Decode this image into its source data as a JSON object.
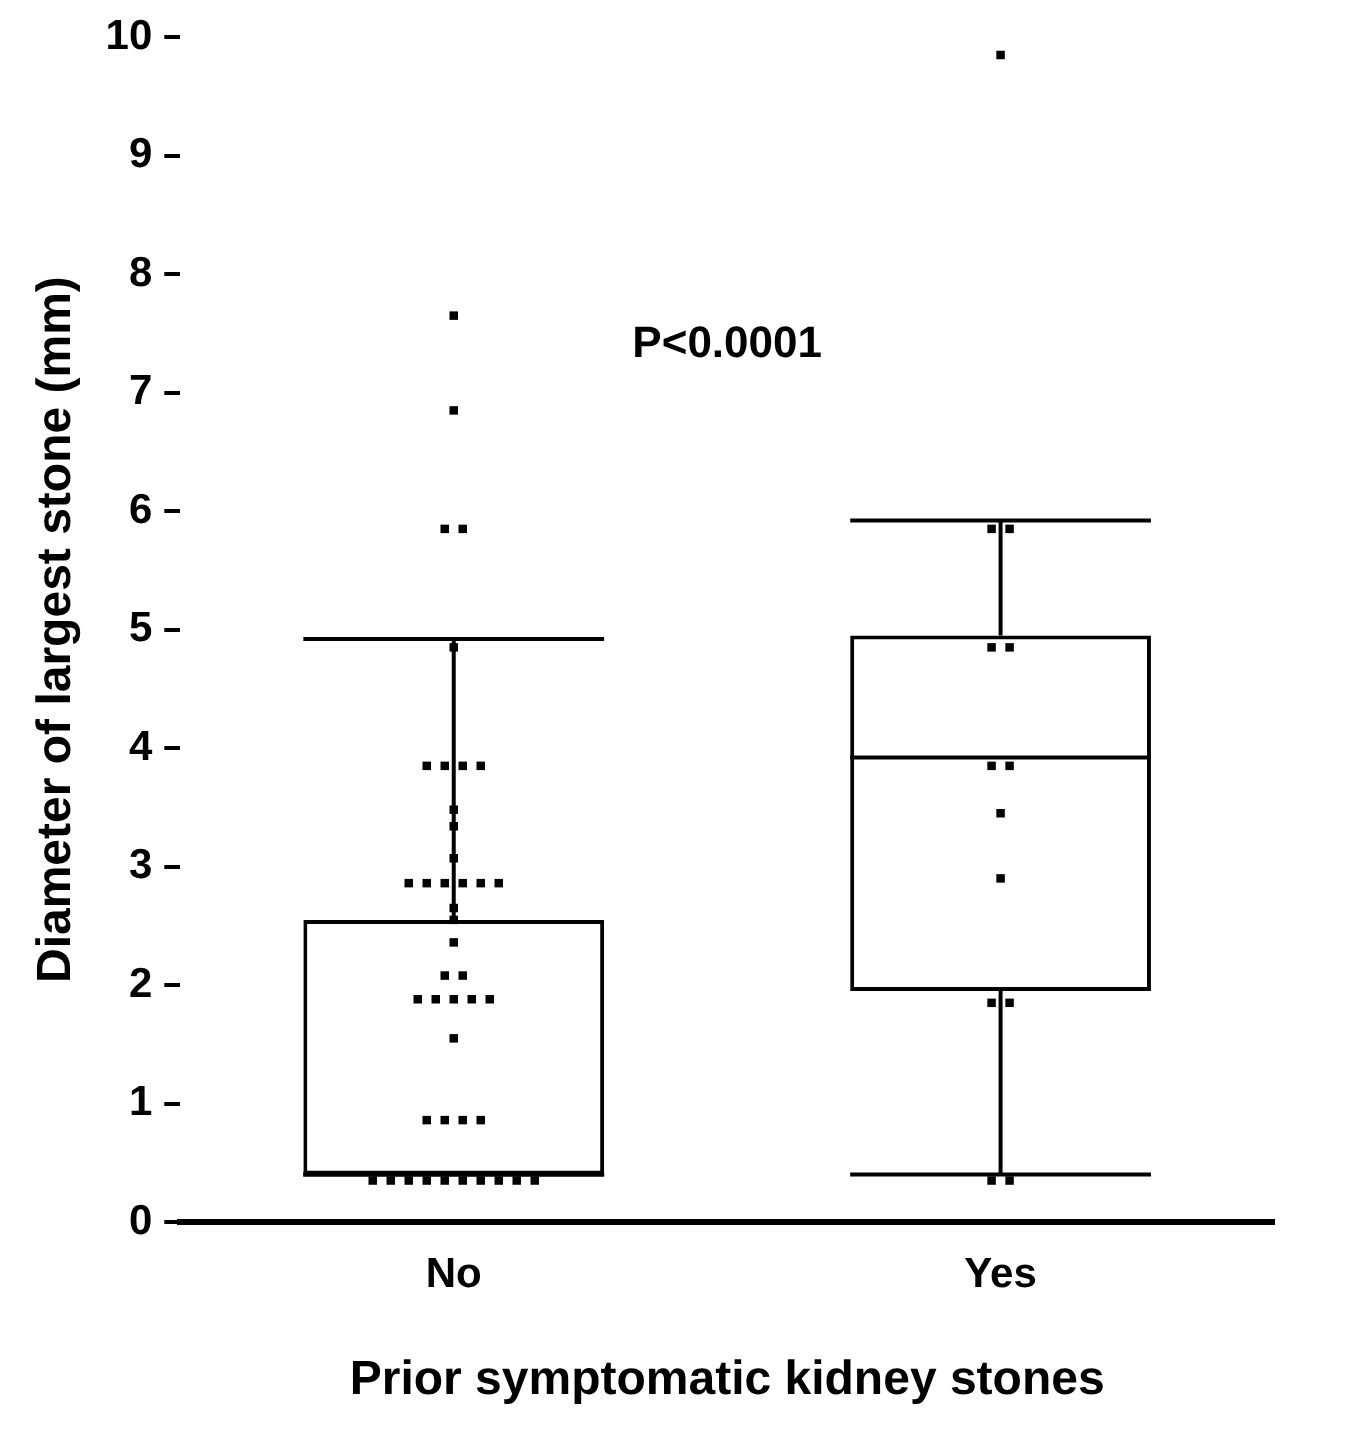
{
  "chart_data": {
    "type": "box",
    "categories": [
      "No",
      "Yes"
    ],
    "xlabel": "Prior symptomatic kidney stones",
    "ylabel": "Diameter of largest stone (mm)",
    "ylim": [
      0,
      10
    ],
    "yticks": [
      0,
      1,
      2,
      3,
      4,
      5,
      6,
      7,
      8,
      9,
      10
    ],
    "grid": false,
    "legend": false,
    "boxes": [
      {
        "low": 0.4,
        "q1": 0.4,
        "median": 0.4,
        "q3": 2.55,
        "high": 4.92
      },
      {
        "low": 0.4,
        "q1": 1.95,
        "median": 3.92,
        "q3": 4.95,
        "high": 5.92
      }
    ],
    "series": [
      {
        "type": "scatter",
        "color": "#000000",
        "marker": "square",
        "x": [
          "No",
          "No",
          "No",
          "No",
          "No",
          "No",
          "No",
          "No",
          "No",
          "No",
          "No",
          "No",
          "No",
          "No",
          "No",
          "No",
          "No",
          "No",
          "No",
          "No",
          "No",
          "No",
          "No",
          "No",
          "No",
          "No",
          "No",
          "No",
          "No",
          "No",
          "No",
          "No",
          "No",
          "No",
          "No",
          "No",
          "No",
          "No",
          "No",
          "No",
          "No",
          "No",
          "No",
          "Yes",
          "Yes",
          "Yes",
          "Yes",
          "Yes",
          "Yes",
          "Yes",
          "Yes",
          "Yes",
          "Yes",
          "Yes",
          "Yes",
          "Yes"
        ],
        "values": [
          7.65,
          6.85,
          5.85,
          5.85,
          4.85,
          3.85,
          3.85,
          3.85,
          3.85,
          3.48,
          3.34,
          3.07,
          2.86,
          2.86,
          2.86,
          2.86,
          2.86,
          2.86,
          2.65,
          2.55,
          2.36,
          2.08,
          2.08,
          1.88,
          1.88,
          1.88,
          1.88,
          1.88,
          1.55,
          0.86,
          0.86,
          0.86,
          0.86,
          0.35,
          0.35,
          0.35,
          0.35,
          0.35,
          0.35,
          0.35,
          0.35,
          0.35,
          0.35,
          9.85,
          5.85,
          5.85,
          4.85,
          4.85,
          3.85,
          3.85,
          3.45,
          2.9,
          1.85,
          1.85,
          0.35,
          0.35
        ]
      }
    ],
    "annotations": [
      "P<0.0001"
    ]
  }
}
